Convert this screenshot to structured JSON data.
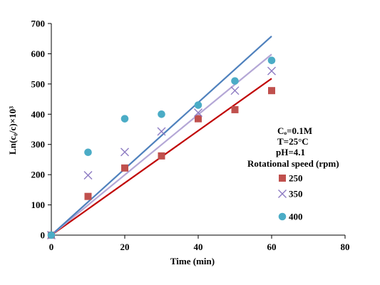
{
  "chart_data": {
    "type": "scatter",
    "xlabel": "Time (min)",
    "ylabel": "Ln(c₀/c)×10³",
    "xlim": [
      0,
      80
    ],
    "ylim": [
      0,
      700
    ],
    "xticks": [
      "0",
      "20",
      "40",
      "60",
      "80"
    ],
    "yticks": [
      "0",
      "100",
      "200",
      "300",
      "400",
      "500",
      "600",
      "700"
    ],
    "grid": false,
    "annotations": [
      "Cₒ=0.1M",
      "T=25°C",
      "pH=4.1",
      "Rotational speed (rpm)"
    ],
    "legend_position": "right",
    "series": [
      {
        "name": "250",
        "marker": "square",
        "color": "#c0504d",
        "line_color": "#c00000",
        "x": [
          0,
          10,
          20,
          30,
          40,
          50,
          60
        ],
        "y": [
          0,
          128,
          222,
          262,
          385,
          415,
          478
        ],
        "fit": [
          [
            0,
            0
          ],
          [
            60,
            518
          ]
        ]
      },
      {
        "name": "350",
        "marker": "x",
        "color": "#8e7cc3",
        "line_color": "#b4a7d6",
        "x": [
          0,
          10,
          20,
          30,
          40,
          50,
          60
        ],
        "y": [
          0,
          198,
          275,
          343,
          405,
          478,
          543
        ],
        "fit": [
          [
            0,
            0
          ],
          [
            60,
            598
          ]
        ]
      },
      {
        "name": "400",
        "marker": "circle",
        "color": "#4bacc6",
        "line_color": "#4f81bd",
        "x": [
          0,
          10,
          20,
          30,
          40,
          50,
          60
        ],
        "y": [
          0,
          274,
          385,
          400,
          430,
          510,
          578
        ],
        "fit": [
          [
            0,
            0
          ],
          [
            60,
            658
          ]
        ]
      }
    ]
  }
}
